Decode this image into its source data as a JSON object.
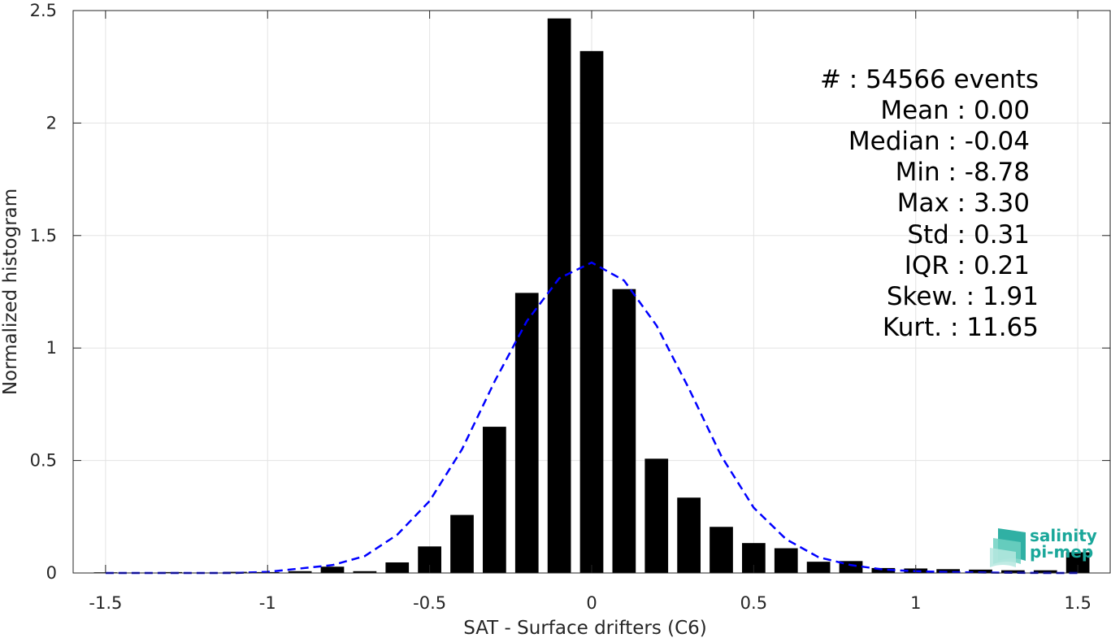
{
  "chart_data": {
    "type": "bar",
    "xlabel": "SAT - Surface drifters (C6)",
    "ylabel": "Normalized histogram",
    "xlim": [
      -1.6,
      1.6
    ],
    "ylim": [
      0,
      2.5
    ],
    "xticks": [
      "-1.5",
      "-1",
      "-0.5",
      "0",
      "0.5",
      "1",
      "1.5"
    ],
    "yticks": [
      "0",
      "0.5",
      "1",
      "1.5",
      "2",
      "2.5"
    ],
    "grid": true,
    "bin_centers": [
      -1.5,
      -1.4,
      -1.3,
      -1.2,
      -1.1,
      -1.0,
      -0.9,
      -0.8,
      -0.7,
      -0.6,
      -0.5,
      -0.4,
      -0.3,
      -0.2,
      -0.1,
      0.0,
      0.1,
      0.2,
      0.3,
      0.4,
      0.5,
      0.6,
      0.7,
      0.8,
      0.9,
      1.0,
      1.1,
      1.2,
      1.3,
      1.4,
      1.5
    ],
    "values": [
      0.003,
      0.002,
      0.004,
      0.002,
      0.005,
      0.004,
      0.008,
      0.028,
      0.008,
      0.047,
      0.118,
      0.258,
      0.65,
      1.245,
      2.465,
      2.32,
      1.262,
      0.508,
      0.335,
      0.205,
      0.133,
      0.11,
      0.05,
      0.053,
      0.022,
      0.02,
      0.017,
      0.015,
      0.012,
      0.012,
      0.092
    ],
    "bar_color": "#000000",
    "fit_curve": {
      "style": "dashed",
      "color": "#0000ff",
      "x": [
        -1.5,
        -1.4,
        -1.3,
        -1.2,
        -1.1,
        -1.0,
        -0.9,
        -0.8,
        -0.7,
        -0.6,
        -0.5,
        -0.4,
        -0.3,
        -0.2,
        -0.1,
        0.0,
        0.1,
        0.2,
        0.3,
        0.4,
        0.5,
        0.6,
        0.7,
        0.8,
        0.9,
        1.0,
        1.1,
        1.2,
        1.3,
        1.4,
        1.5
      ],
      "y": [
        0.0,
        0.0,
        0.0,
        0.0,
        0.0,
        0.005,
        0.02,
        0.035,
        0.075,
        0.17,
        0.32,
        0.55,
        0.85,
        1.12,
        1.31,
        1.38,
        1.3,
        1.1,
        0.82,
        0.52,
        0.29,
        0.15,
        0.07,
        0.035,
        0.015,
        0.008,
        0.004,
        0.002,
        0.001,
        0.0,
        0.0
      ]
    },
    "annotations": [
      "#  : 54566 events",
      "Mean : 0.00",
      "Median : -0.04",
      "Min : -8.78",
      "Max : 3.30",
      "Std : 0.31",
      "IQR : 0.21",
      "Skew. : 1.91",
      "Kurt. : 11.65"
    ]
  },
  "logo": {
    "line1": "salinity",
    "line2": "pi-mep",
    "color": "#1aa79a"
  }
}
